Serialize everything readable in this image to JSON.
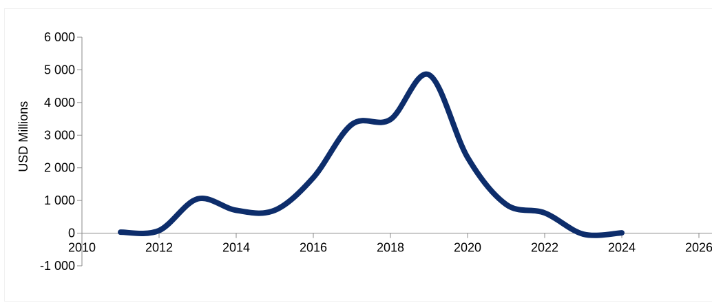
{
  "chart_data": {
    "type": "line",
    "title": "",
    "xlabel": "",
    "ylabel": "USD Millions",
    "xlim": [
      2010,
      2026
    ],
    "ylim": [
      -1000,
      6000
    ],
    "x_ticks": [
      2010,
      2012,
      2014,
      2016,
      2018,
      2020,
      2022,
      2024,
      2026
    ],
    "x_tick_labels": [
      "2010",
      "2012",
      "2014",
      "2016",
      "2018",
      "2020",
      "2022",
      "2024",
      "2026"
    ],
    "y_ticks": [
      6000,
      5000,
      4000,
      3000,
      2000,
      1000,
      0,
      -1000
    ],
    "y_tick_labels": [
      "6 000",
      "5 000",
      "4 000",
      "3 000",
      "2 000",
      "1 000",
      "0",
      "-1 000"
    ],
    "grid": false,
    "series": [
      {
        "color": "#0d2d6b",
        "x": [
          2011,
          2012,
          2013,
          2014,
          2015,
          2016,
          2017,
          2018,
          2019,
          2020,
          2021,
          2022,
          2023,
          2024
        ],
        "values": [
          30,
          80,
          1050,
          700,
          700,
          1700,
          3330,
          3480,
          4850,
          2320,
          880,
          620,
          -30,
          10
        ]
      }
    ]
  }
}
